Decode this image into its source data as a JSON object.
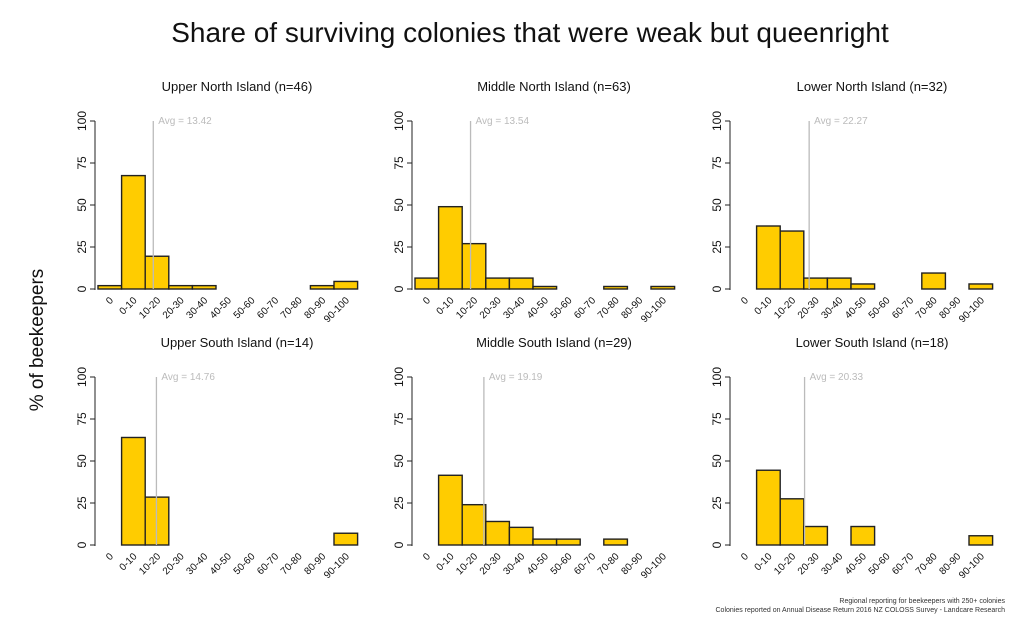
{
  "title": "Share of surviving colonies that were weak but queenright",
  "ylabel": "% of beekeepers",
  "footnote": [
    "Regional reporting for beekeepers with 250+ colonies",
    "Colonies reported on Annual Disease Return 2016 NZ COLOSS Survey - Landcare Research"
  ],
  "colors": {
    "bar": "#FFCC00",
    "bar_stroke": "#222222",
    "avg_line": "#BBBBBB",
    "avg_text": "#BBBBBB"
  },
  "chart_data": [
    {
      "type": "bar",
      "title": "Upper North Island (n=46)",
      "categories": [
        "0",
        "0-10",
        "10-20",
        "20-30",
        "30-40",
        "40-50",
        "50-60",
        "60-70",
        "70-80",
        "80-90",
        "90-100"
      ],
      "values": [
        2,
        67.5,
        19.5,
        2,
        2,
        0,
        0,
        0,
        0,
        2,
        4.5
      ],
      "avg": 13.42,
      "avg_label": "Avg = 13.42",
      "yticks": [
        0,
        25,
        50,
        75,
        100
      ],
      "ylim": [
        0,
        100
      ]
    },
    {
      "type": "bar",
      "title": "Middle North Island (n=63)",
      "categories": [
        "0",
        "0-10",
        "10-20",
        "20-30",
        "30-40",
        "40-50",
        "50-60",
        "60-70",
        "70-80",
        "80-90",
        "90-100"
      ],
      "values": [
        6.5,
        49,
        27,
        6.5,
        6.5,
        1.5,
        0,
        0,
        1.5,
        0,
        1.5
      ],
      "avg": 13.54,
      "avg_label": "Avg = 13.54",
      "yticks": [
        0,
        25,
        50,
        75,
        100
      ],
      "ylim": [
        0,
        100
      ]
    },
    {
      "type": "bar",
      "title": "Lower North Island (n=32)",
      "categories": [
        "0",
        "0-10",
        "10-20",
        "20-30",
        "30-40",
        "40-50",
        "50-60",
        "60-70",
        "70-80",
        "80-90",
        "90-100"
      ],
      "values": [
        0,
        37.5,
        34.5,
        6.5,
        6.5,
        3,
        0,
        0,
        9.5,
        0,
        3
      ],
      "avg": 22.27,
      "avg_label": "Avg = 22.27",
      "yticks": [
        0,
        25,
        50,
        75,
        100
      ],
      "ylim": [
        0,
        100
      ]
    },
    {
      "type": "bar",
      "title": "Upper South Island (n=14)",
      "categories": [
        "0",
        "0-10",
        "10-20",
        "20-30",
        "30-40",
        "40-50",
        "50-60",
        "60-70",
        "70-80",
        "80-90",
        "90-100"
      ],
      "values": [
        0,
        64,
        28.5,
        0,
        0,
        0,
        0,
        0,
        0,
        0,
        7
      ],
      "avg": 14.76,
      "avg_label": "Avg = 14.76",
      "yticks": [
        0,
        25,
        50,
        75,
        100
      ],
      "ylim": [
        0,
        100
      ]
    },
    {
      "type": "bar",
      "title": "Middle South Island (n=29)",
      "categories": [
        "0",
        "0-10",
        "10-20",
        "20-30",
        "30-40",
        "40-50",
        "50-60",
        "60-70",
        "70-80",
        "80-90",
        "90-100"
      ],
      "values": [
        0,
        41.5,
        24,
        14,
        10.5,
        3.5,
        3.5,
        0,
        3.5,
        0,
        0
      ],
      "avg": 19.19,
      "avg_label": "Avg = 19.19",
      "yticks": [
        0,
        25,
        50,
        75,
        100
      ],
      "ylim": [
        0,
        100
      ]
    },
    {
      "type": "bar",
      "title": "Lower South Island (n=18)",
      "categories": [
        "0",
        "0-10",
        "10-20",
        "20-30",
        "30-40",
        "40-50",
        "50-60",
        "60-70",
        "70-80",
        "80-90",
        "90-100"
      ],
      "values": [
        0,
        44.5,
        27.5,
        11,
        0,
        11,
        0,
        0,
        0,
        0,
        5.5
      ],
      "avg": 20.33,
      "avg_label": "Avg = 20.33",
      "yticks": [
        0,
        25,
        50,
        75,
        100
      ],
      "ylim": [
        0,
        100
      ]
    }
  ]
}
